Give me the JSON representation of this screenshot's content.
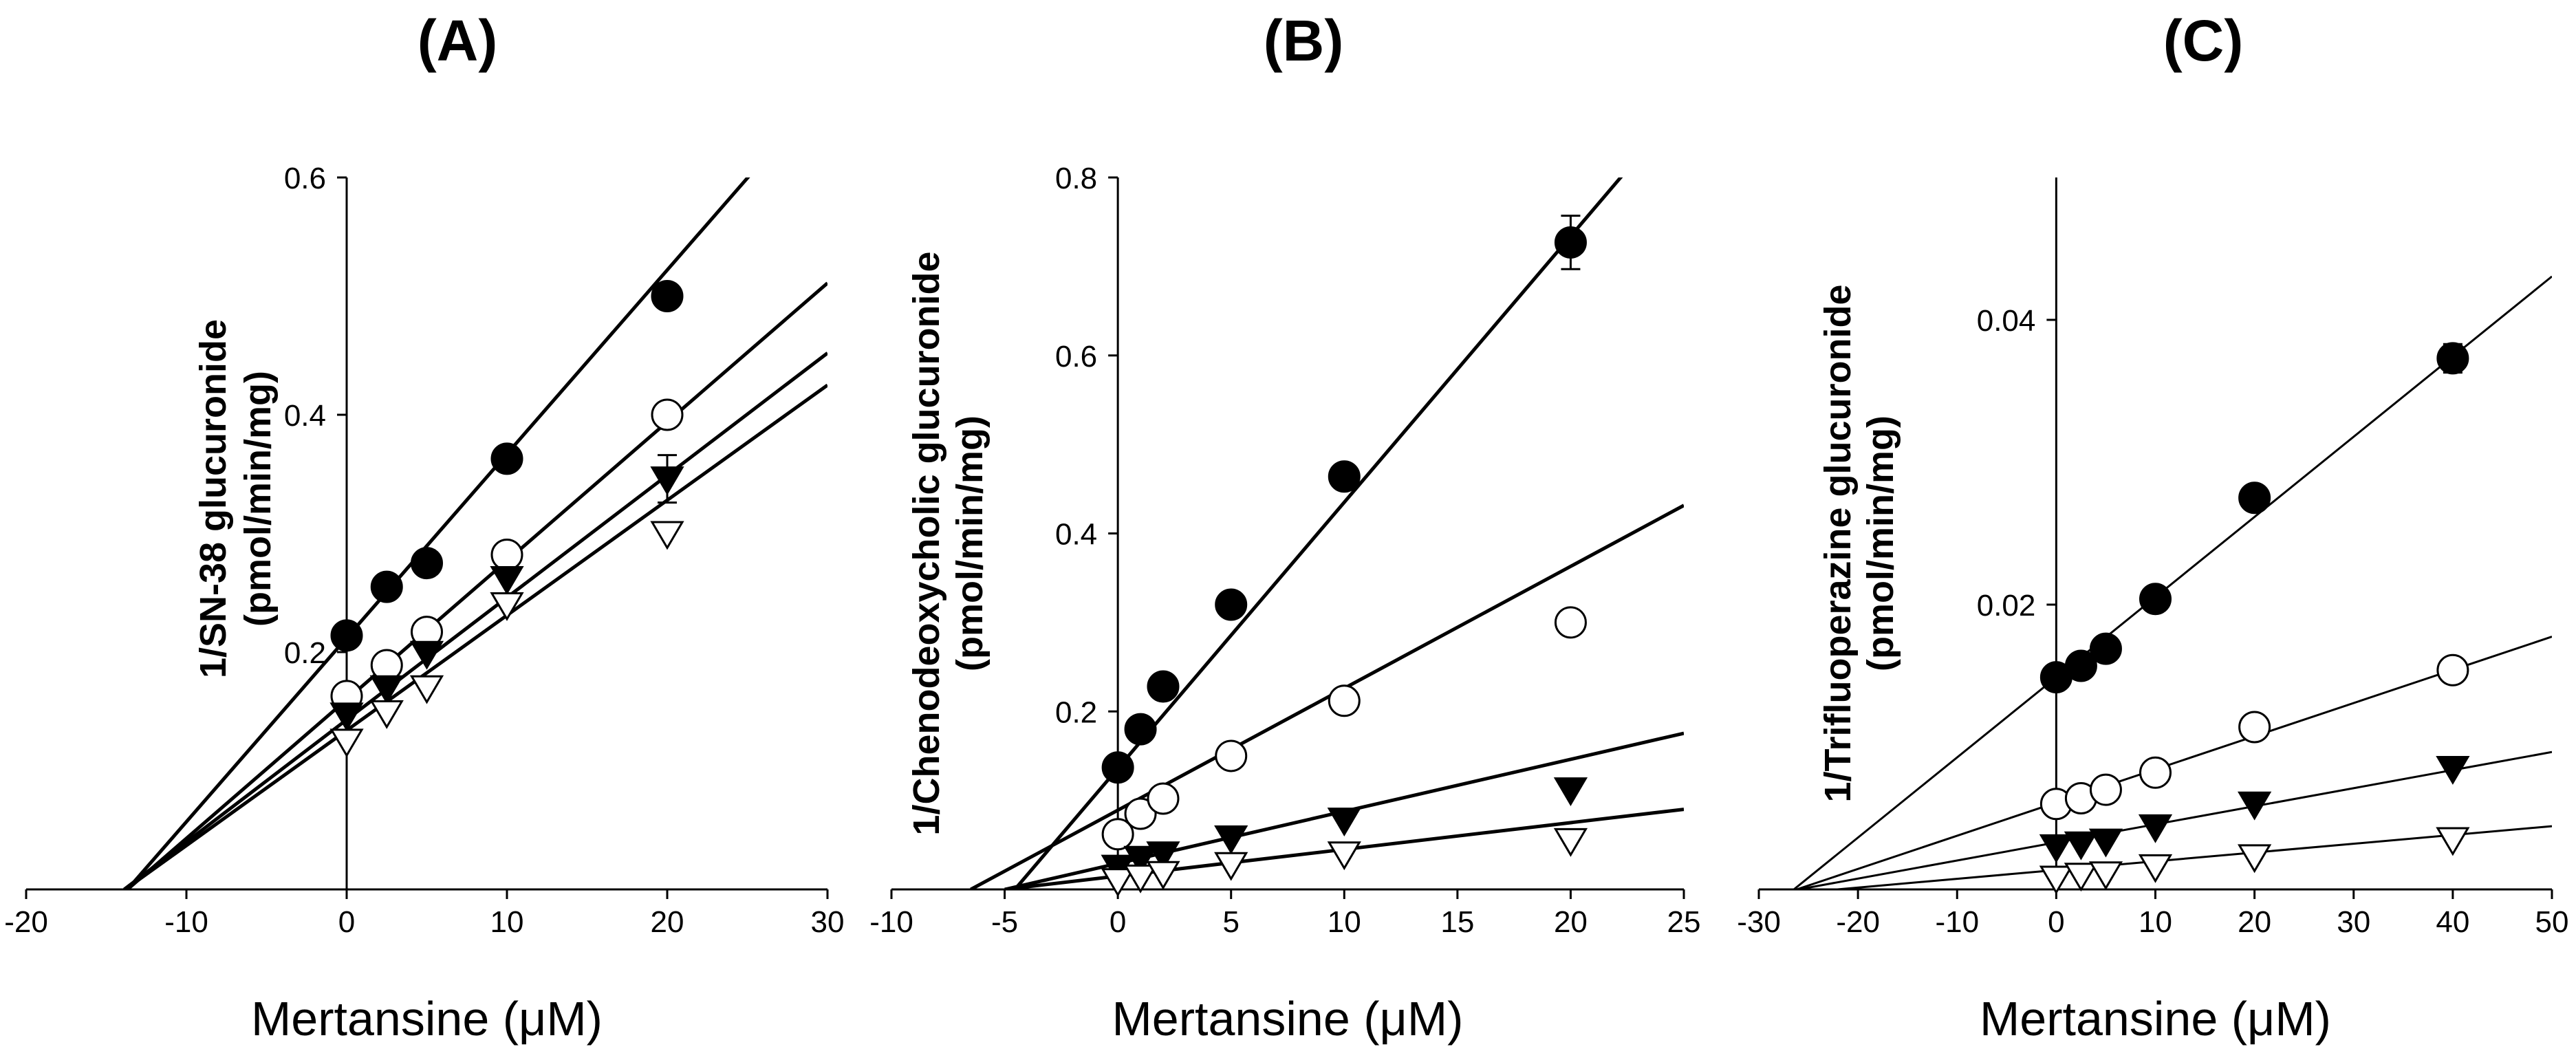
{
  "figure": {
    "markers": [
      {
        "symbol": "filled-circle-icon"
      },
      {
        "symbol": "open-circle-icon"
      },
      {
        "symbol": "filled-triangle-down-icon"
      },
      {
        "symbol": "open-triangle-down-icon"
      }
    ]
  },
  "chart_data": [
    {
      "type": "scatter",
      "panel_label": "(A)",
      "xlabel": "Mertansine (μM)",
      "ylabel_line1": "1/SN-38 glucuronide",
      "ylabel_line2": "(pmol/min/mg)",
      "xlim": [
        -20,
        30
      ],
      "ylim": [
        0,
        0.6
      ],
      "xticks": [
        -20,
        -10,
        0,
        10,
        20,
        30
      ],
      "yticks": [
        0.2,
        0.4,
        0.6
      ],
      "ytick_labels": [
        "0.2",
        "0.4",
        "0.6"
      ],
      "x": [
        0,
        2.5,
        5,
        10,
        20
      ],
      "series": [
        {
          "marker": "filled-circle",
          "values": [
            0.214,
            0.255,
            0.275,
            0.363,
            0.5
          ],
          "err": [
            0,
            0,
            0.01,
            0,
            0.01
          ],
          "fit": {
            "slope": 0.0155,
            "intercept": 0.212
          }
        },
        {
          "marker": "open-circle",
          "values": [
            0.163,
            0.189,
            0.217,
            0.282,
            0.4
          ],
          "err": [
            0,
            0,
            0,
            0,
            0
          ],
          "fit": {
            "slope": 0.0117,
            "intercept": 0.16
          }
        },
        {
          "marker": "filled-triangle-down",
          "values": [
            0.147,
            0.17,
            0.199,
            0.262,
            0.346
          ],
          "err": [
            0,
            0,
            0,
            0,
            0.02
          ],
          "fit": {
            "slope": 0.0103,
            "intercept": 0.143
          }
        },
        {
          "marker": "open-triangle-down",
          "values": [
            0.125,
            0.149,
            0.17,
            0.24,
            0.3
          ],
          "err": [
            0,
            0,
            0,
            0,
            0
          ],
          "fit": {
            "slope": 0.0097,
            "intercept": 0.134
          }
        }
      ]
    },
    {
      "type": "scatter",
      "panel_label": "(B)",
      "xlabel": "Mertansine (μM)",
      "ylabel_line1": "1/Chenodeoxycholic glucuronide",
      "ylabel_line2": "(pmol/min/mg)",
      "xlim": [
        -10,
        25
      ],
      "ylim": [
        0,
        0.8
      ],
      "xticks": [
        -10,
        -5,
        0,
        5,
        10,
        15,
        20,
        25
      ],
      "yticks": [
        0.2,
        0.4,
        0.6,
        0.8
      ],
      "ytick_labels": [
        "0.2",
        "0.4",
        "0.6",
        "0.8"
      ],
      "x": [
        0,
        1,
        2,
        5,
        10,
        20
      ],
      "series": [
        {
          "marker": "filled-circle",
          "values": [
            0.137,
            0.18,
            0.228,
            0.32,
            0.464,
            0.727
          ],
          "err": [
            0,
            0,
            0,
            0,
            0,
            0.03
          ],
          "fit": {
            "slope": 0.0299,
            "intercept": 0.136
          }
        },
        {
          "marker": "open-circle",
          "values": [
            0.062,
            0.085,
            0.102,
            0.15,
            0.212,
            0.3
          ],
          "err": [
            0,
            0,
            0,
            0,
            0,
            0
          ],
          "fit": {
            "slope": 0.0137,
            "intercept": 0.089
          }
        },
        {
          "marker": "filled-triangle-down",
          "values": [
            0.025,
            0.035,
            0.04,
            0.058,
            0.078,
            0.112
          ],
          "err": [
            0,
            0,
            0,
            0,
            0,
            0
          ],
          "fit": {
            "slope": 0.00585,
            "intercept": 0.0292
          }
        },
        {
          "marker": "open-triangle-down",
          "values": [
            0.01,
            0.014,
            0.018,
            0.028,
            0.04,
            0.055
          ],
          "err": [
            0,
            0,
            0,
            0,
            0,
            0
          ],
          "fit": {
            "slope": 0.003,
            "intercept": 0.015
          }
        }
      ]
    },
    {
      "type": "scatter",
      "panel_label": "(C)",
      "xlabel": "Mertansine (μM)",
      "ylabel_line1": "1/Trifluoperazine glucuronide",
      "ylabel_line2": "(pmol/min/mg)",
      "xlim": [
        -30,
        50
      ],
      "ylim": [
        0,
        0.05
      ],
      "xticks": [
        -30,
        -20,
        -10,
        0,
        10,
        20,
        30,
        40,
        50
      ],
      "yticks": [
        0.02,
        0.04
      ],
      "ytick_labels": [
        "0.02",
        "0.04"
      ],
      "x": [
        0,
        2.5,
        5,
        10,
        20,
        40
      ],
      "series": [
        {
          "marker": "filled-circle",
          "values": [
            0.0149,
            0.0157,
            0.0169,
            0.0204,
            0.0275,
            0.0373
          ],
          "err": [
            0,
            0,
            0,
            0,
            0,
            0.001
          ],
          "fit": {
            "slope": 0.000563,
            "intercept": 0.0149
          }
        },
        {
          "marker": "open-circle",
          "values": [
            0.006,
            0.0064,
            0.007,
            0.0082,
            0.0114,
            0.0154
          ],
          "err": [
            0,
            0,
            0,
            0,
            0,
            0
          ],
          "fit": {
            "slope": 0.000233,
            "intercept": 0.0061
          }
        },
        {
          "marker": "filled-triangle-down",
          "values": [
            0.003,
            0.0032,
            0.0034,
            0.0044,
            0.006,
            0.0085
          ],
          "err": [
            0,
            0,
            0,
            0,
            0,
            0
          ],
          "fit": {
            "slope": 0.000127,
            "intercept": 0.0033
          }
        },
        {
          "marker": "open-triangle-down",
          "values": [
            0.0008,
            0.001,
            0.0011,
            0.0016,
            0.0023,
            0.0035
          ],
          "err": [
            0,
            0,
            0,
            0,
            0,
            0
          ],
          "fit": {
            "slope": 6.16e-05,
            "intercept": 0.00136
          }
        }
      ]
    }
  ]
}
